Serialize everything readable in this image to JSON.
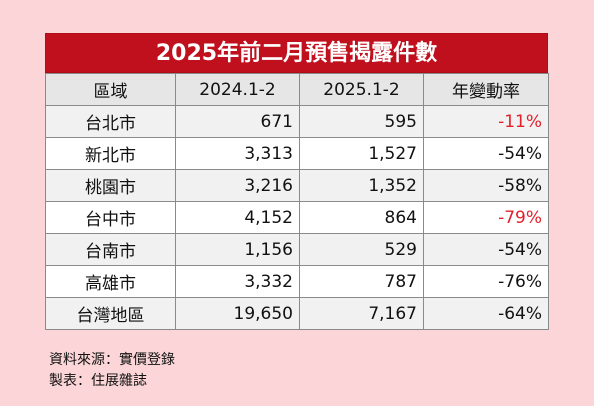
{
  "chart_data": {
    "type": "table",
    "title": "2025年前二月預售揭露件數",
    "columns": [
      "區域",
      "2024.1-2",
      "2025.1-2",
      "年變動率"
    ],
    "rows": [
      {
        "region": "台北市",
        "y2024": "671",
        "y2025": "595",
        "change": "-11%",
        "highlight": true
      },
      {
        "region": "新北市",
        "y2024": "3,313",
        "y2025": "1,527",
        "change": "-54%",
        "highlight": false
      },
      {
        "region": "桃園市",
        "y2024": "3,216",
        "y2025": "1,352",
        "change": "-58%",
        "highlight": false
      },
      {
        "region": "台中市",
        "y2024": "4,152",
        "y2025": "864",
        "change": "-79%",
        "highlight": true
      },
      {
        "region": "台南市",
        "y2024": "1,156",
        "y2025": "529",
        "change": "-54%",
        "highlight": false
      },
      {
        "region": "高雄市",
        "y2024": "3,332",
        "y2025": "787",
        "change": "-76%",
        "highlight": false
      },
      {
        "region": "台灣地區",
        "y2024": "19,650",
        "y2025": "7,167",
        "change": "-64%",
        "highlight": false
      }
    ]
  },
  "notes": {
    "source": "資料來源：實價登錄",
    "maker": "製表：住展雜誌"
  },
  "colors": {
    "title_bg": "#c0101d",
    "highlight": "#e2202c",
    "background": "#fbd5d7"
  }
}
